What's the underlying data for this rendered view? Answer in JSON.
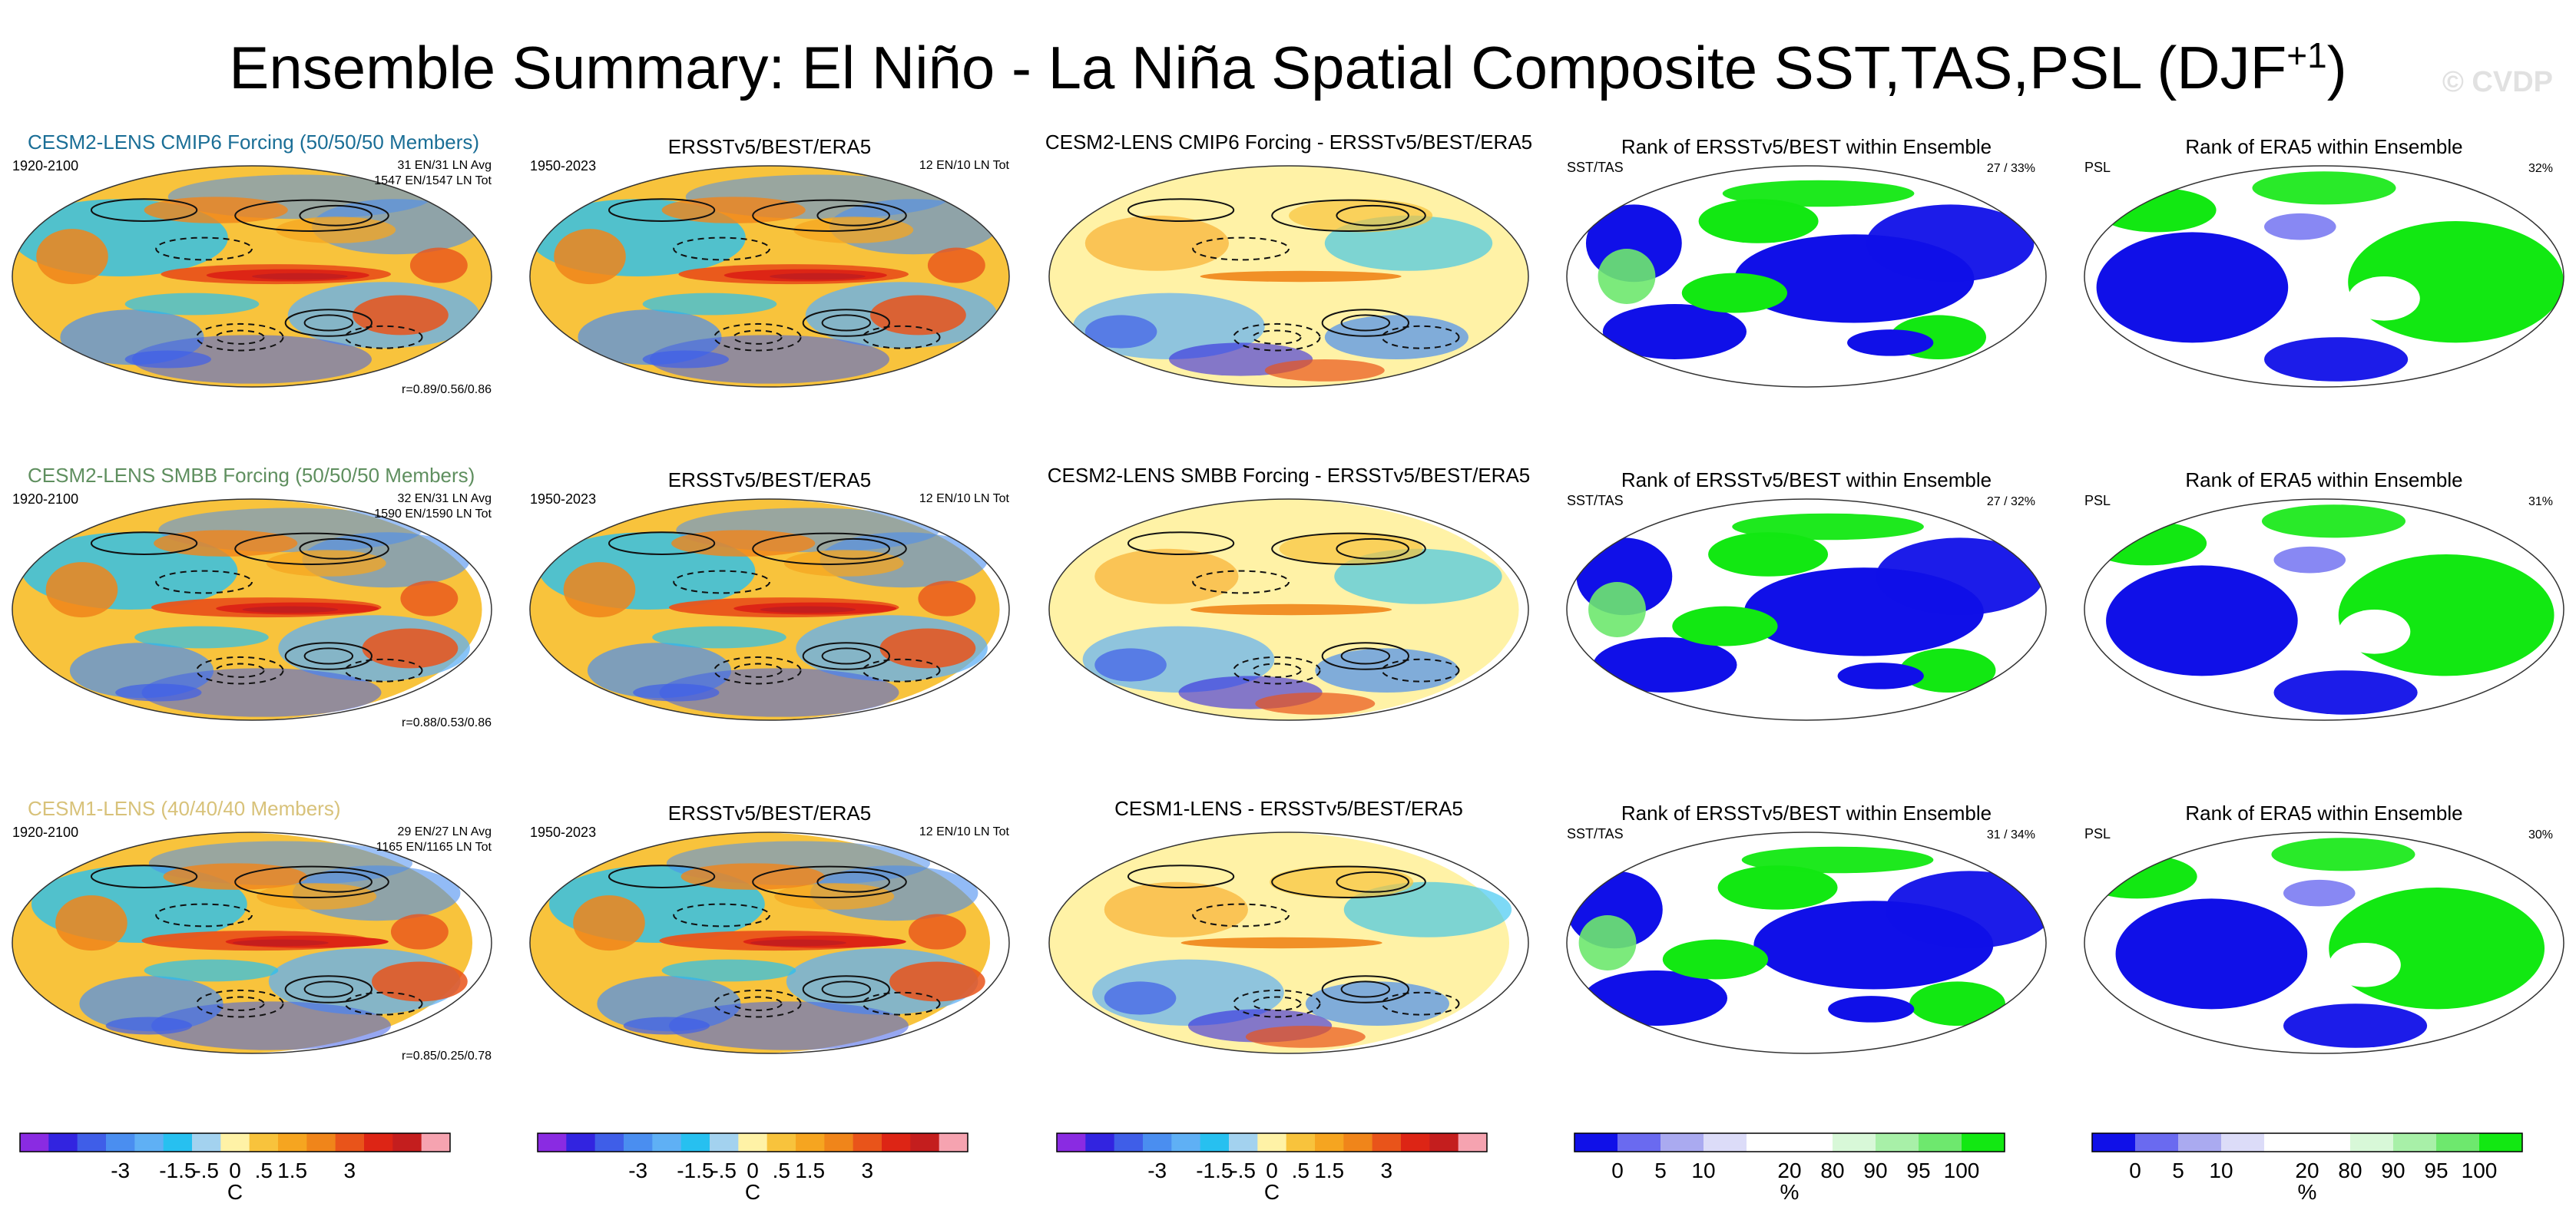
{
  "title": {
    "text": "Ensemble Summary: El Niño - La Niña Spatial Composite SST,TAS,PSL (DJF",
    "superscript": "+1",
    "suffix": ")"
  },
  "watermark": "© CVDP",
  "colors": {
    "temp_scale": [
      "#8a2be2",
      "#3224e0",
      "#3f5ee8",
      "#4a8ef0",
      "#5fb0f5",
      "#27c0f0",
      "#a3d2ef",
      "#fff2a6",
      "#f8c33c",
      "#f6a520",
      "#f0851a",
      "#e9541a",
      "#dd2515",
      "#c41e1e",
      "#f6a3b0"
    ],
    "rank_scale": [
      "#1010e8",
      "#6a6af0",
      "#aaaaf0",
      "#dcdcf8",
      "#ffffff",
      "#ffffff",
      "#d8f8d8",
      "#a8f0a8",
      "#6ee86e",
      "#12e812"
    ],
    "model_titles": {
      "cmip6": "#1a6e96",
      "smbb": "#5f8f5f",
      "cesm1": "#d8c27a"
    }
  },
  "panels": [
    {
      "row": 0,
      "model": {
        "title": "CESM2-LENS CMIP6 Forcing (50/50/50 Members)",
        "period": "1920-2100",
        "counts_avg": "31 EN/31 LN Avg",
        "counts_tot": "1547 EN/1547 LN Tot",
        "corr": "r=0.89/0.56/0.86"
      },
      "obs": {
        "title": "ERSSTv5/BEST/ERA5",
        "period": "1950-2023",
        "counts": "12 EN/10 LN Tot"
      },
      "diff": {
        "title": "CESM2-LENS CMIP6 Forcing - ERSSTv5/BEST/ERA5"
      },
      "rank_sst": {
        "title": "Rank of ERSSTv5/BEST within Ensemble",
        "label": "SST/TAS",
        "pct": "27 /  33%"
      },
      "rank_psl": {
        "title": "Rank of ERA5 within Ensemble",
        "label": "PSL",
        "pct": "32%"
      }
    },
    {
      "row": 1,
      "model": {
        "title": "CESM2-LENS SMBB Forcing (50/50/50 Members)",
        "period": "1920-2100",
        "counts_avg": "32 EN/31 LN Avg",
        "counts_tot": "1590 EN/1590 LN Tot",
        "corr": "r=0.88/0.53/0.86"
      },
      "obs": {
        "title": "ERSSTv5/BEST/ERA5",
        "period": "1950-2023",
        "counts": "12 EN/10 LN Tot"
      },
      "diff": {
        "title": "CESM2-LENS SMBB Forcing - ERSSTv5/BEST/ERA5"
      },
      "rank_sst": {
        "title": "Rank of ERSSTv5/BEST within Ensemble",
        "label": "SST/TAS",
        "pct": "27 /  32%"
      },
      "rank_psl": {
        "title": "Rank of ERA5 within Ensemble",
        "label": "PSL",
        "pct": "31%"
      }
    },
    {
      "row": 2,
      "model": {
        "title": "CESM1-LENS (40/40/40 Members)",
        "period": "1920-2100",
        "counts_avg": "29 EN/27 LN Avg",
        "counts_tot": "1165 EN/1165 LN Tot",
        "corr": "r=0.85/0.25/0.78"
      },
      "obs": {
        "title": "ERSSTv5/BEST/ERA5",
        "period": "1950-2023",
        "counts": "12 EN/10 LN Tot"
      },
      "diff": {
        "title": "CESM1-LENS - ERSSTv5/BEST/ERA5"
      },
      "rank_sst": {
        "title": "Rank of ERSSTv5/BEST within Ensemble",
        "label": "SST/TAS",
        "pct": "31 /  34%"
      },
      "rank_psl": {
        "title": "Rank of ERA5 within Ensemble",
        "label": "PSL",
        "pct": "30%"
      }
    }
  ],
  "chart_data": {
    "type": "heatmap",
    "title": "Ensemble Summary: El Niño - La Niña Spatial Composite SST,TAS,PSL (DJF+1)",
    "columns": [
      "model composite",
      "observed composite",
      "model minus observed",
      "rank of ERSSTv5/BEST (SST/TAS)",
      "rank of ERA5 (PSL)"
    ],
    "rows": [
      "CESM2-LENS CMIP6 Forcing",
      "CESM2-LENS SMBB Forcing",
      "CESM1-LENS"
    ],
    "temperature_colorbar": {
      "unit": "C",
      "tick_labels": [
        "-3",
        "-1.5",
        "-.5",
        "0",
        ".5",
        "1.5",
        "3"
      ]
    },
    "rank_colorbar": {
      "unit": "%",
      "tick_labels": [
        "0",
        "5",
        "10",
        "20",
        "80",
        "90",
        "95",
        "100"
      ]
    },
    "pattern_correlations": [
      {
        "model": "CESM2-LENS CMIP6 Forcing",
        "sst": 0.89,
        "tas": 0.56,
        "psl": 0.86
      },
      {
        "model": "CESM2-LENS SMBB Forcing",
        "sst": 0.88,
        "tas": 0.53,
        "psl": 0.86
      },
      {
        "model": "CESM1-LENS",
        "sst": 0.85,
        "tas": 0.25,
        "psl": 0.78
      }
    ],
    "event_counts": [
      {
        "model": "CESM2-LENS CMIP6 Forcing",
        "members": 50,
        "en_avg": 31,
        "ln_avg": 31,
        "en_tot": 1547,
        "ln_tot": 1547
      },
      {
        "model": "CESM2-LENS SMBB Forcing",
        "members": 50,
        "en_avg": 32,
        "ln_avg": 31,
        "en_tot": 1590,
        "ln_tot": 1590
      },
      {
        "model": "CESM1-LENS",
        "members": 40,
        "en_avg": 29,
        "ln_avg": 27,
        "en_tot": 1165,
        "ln_tot": 1165
      }
    ],
    "observed_counts": {
      "en_tot": 12,
      "ln_tot": 10,
      "period": "1950-2023"
    },
    "rank_percentages": [
      {
        "model": "CESM2-LENS CMIP6 Forcing",
        "sst_tas": [
          27,
          33
        ],
        "psl": 32
      },
      {
        "model": "CESM2-LENS SMBB Forcing",
        "sst_tas": [
          27,
          32
        ],
        "psl": 31
      },
      {
        "model": "CESM1-LENS",
        "sst_tas": [
          31,
          34
        ],
        "psl": 30
      }
    ]
  },
  "colorbars": [
    {
      "kind": "temp",
      "unit": "C",
      "labels": [
        "-3",
        "-1.5",
        "-.5",
        "0",
        ".5",
        "1.5",
        "3"
      ]
    },
    {
      "kind": "temp",
      "unit": "C",
      "labels": [
        "-3",
        "-1.5",
        "-.5",
        "0",
        ".5",
        "1.5",
        "3"
      ]
    },
    {
      "kind": "temp",
      "unit": "C",
      "labels": [
        "-3",
        "-1.5",
        "-.5",
        "0",
        ".5",
        "1.5",
        "3"
      ]
    },
    {
      "kind": "rank",
      "unit": "%",
      "labels": [
        "0",
        "5",
        "10",
        "20",
        "80",
        "90",
        "95",
        "100"
      ]
    },
    {
      "kind": "rank",
      "unit": "%",
      "labels": [
        "0",
        "5",
        "10",
        "20",
        "80",
        "90",
        "95",
        "100"
      ]
    }
  ]
}
